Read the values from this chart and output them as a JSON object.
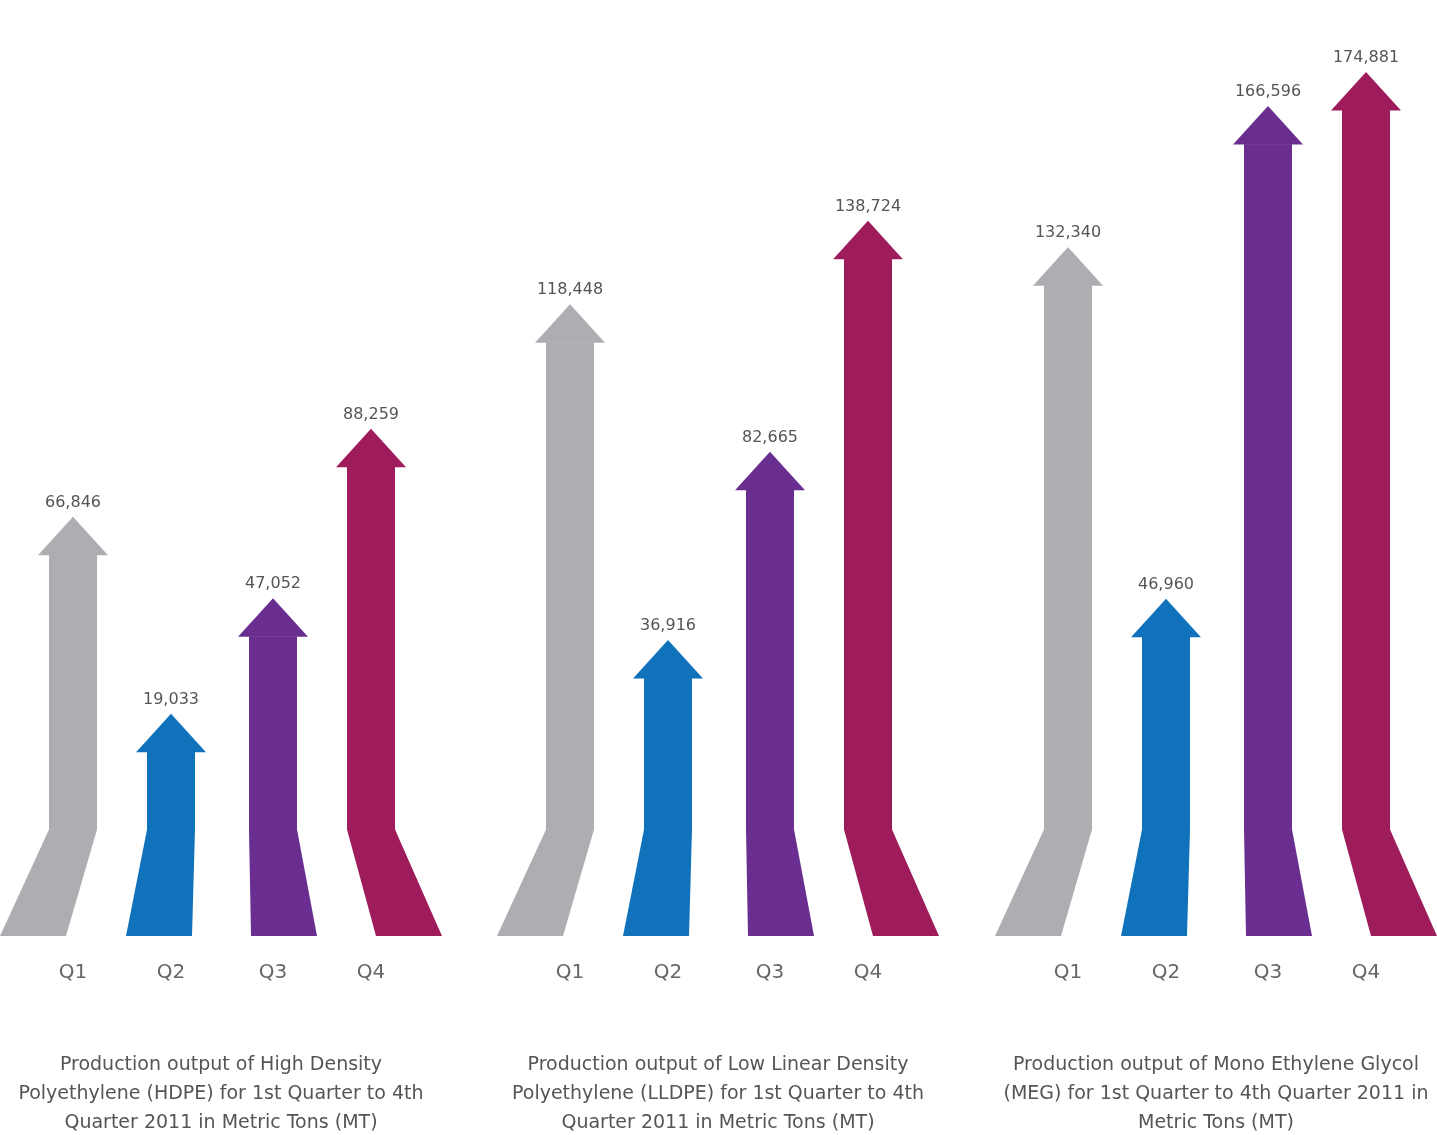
{
  "chart_data": [
    {
      "type": "bar",
      "title": "Production output of High Density Polyethylene (HDPE) for 1st Quarter to 4th Quarter 2011 in Metric Tons (MT)",
      "categories": [
        "Q1",
        "Q2",
        "Q3",
        "Q4"
      ],
      "values": [
        66846,
        19033,
        47052,
        88259
      ],
      "value_labels": [
        "66,846",
        "19,033",
        "47,052",
        "88,259"
      ],
      "colors": [
        "#adaeb2",
        "#1172bc",
        "#6a2e91",
        "#9e1c5c"
      ]
    },
    {
      "type": "bar",
      "title": "Production output of Low Linear Density Polyethylene (LLDPE) for 1st Quarter to 4th Quarter 2011 in Metric Tons (MT)",
      "categories": [
        "Q1",
        "Q2",
        "Q3",
        "Q4"
      ],
      "values": [
        118448,
        36916,
        82665,
        138724
      ],
      "value_labels": [
        "118,448",
        "36,916",
        "82,665",
        "138,724"
      ],
      "colors": [
        "#adaeb2",
        "#1172bc",
        "#6a2e91",
        "#9e1c5c"
      ]
    },
    {
      "type": "bar",
      "title": "Production output of Mono Ethylene Glycol (MEG) for 1st Quarter to 4th Quarter 2011 in Metric Tons (MT)",
      "categories": [
        "Q1",
        "Q2",
        "Q3",
        "Q4"
      ],
      "values": [
        132340,
        46960,
        166596,
        174881
      ],
      "value_labels": [
        "132,340",
        "46,960",
        "166,596",
        "174,881"
      ],
      "colors": [
        "#adaeb2",
        "#1172bc",
        "#6a2e91",
        "#9e1c5c"
      ]
    }
  ]
}
